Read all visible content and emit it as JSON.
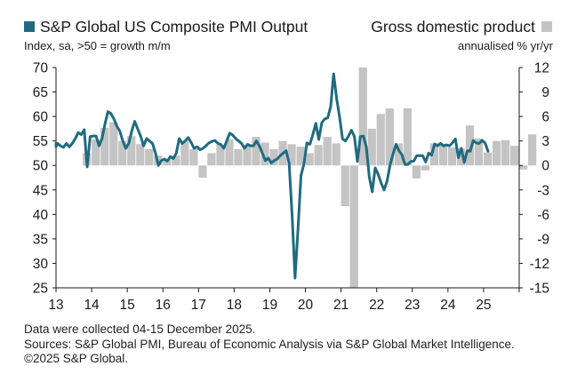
{
  "chart_data": {
    "type": "bar+line",
    "legend_left": {
      "label": "S&P Global US Composite PMI Output",
      "color": "#1f6b80"
    },
    "legend_right": {
      "label": "Gross domestic product",
      "color": "#c4c4c4"
    },
    "left_axis": {
      "subtitle": "Index, sa, >50 = growth m/m",
      "ylim": [
        25,
        70
      ],
      "ticks": [
        25,
        30,
        35,
        40,
        45,
        50,
        55,
        60,
        65,
        70
      ]
    },
    "right_axis": {
      "subtitle": "annualised % yr/yr",
      "ylim": [
        -15,
        12
      ],
      "ticks": [
        -15,
        -12,
        -9,
        -6,
        -3,
        0,
        3,
        6,
        9,
        12
      ]
    },
    "x_axis": {
      "range": [
        2013.0,
        2026.0
      ],
      "tick_labels": [
        "13",
        "14",
        "15",
        "16",
        "17",
        "18",
        "19",
        "20",
        "21",
        "22",
        "23",
        "24",
        "25"
      ]
    },
    "gdp_quarterly": {
      "start": "2013-Q4",
      "values": [
        1.5,
        3.2,
        4.6,
        5.3,
        3.0,
        3.6,
        2.6,
        2.0,
        1.2,
        0.8,
        1.2,
        3.0,
        2.0,
        -1.5,
        1.5,
        2.5,
        3.2,
        2.0,
        2.5,
        3.5,
        2.8,
        2.0,
        3.0,
        2.6,
        2.3,
        1.5,
        2.5,
        3.5,
        2.7,
        -5.0,
        -32.0,
        33.0,
        4.5,
        6.3,
        7.0,
        2.7,
        7.0,
        -1.6,
        -0.6,
        2.7,
        2.6,
        2.2,
        2.1,
        4.9,
        3.3,
        1.6,
        3.0,
        3.1,
        2.4,
        -0.5,
        3.8
      ],
      "note": "2020 Q2 and Q3 exceed the axis range and are clipped at the chart edges"
    },
    "pmi_monthly": {
      "start": "2012-10",
      "values": [
        54.0,
        54.5,
        53.8,
        54.5,
        54.0,
        53.7,
        54.5,
        53.8,
        54.5,
        55.5,
        56.7,
        56.3,
        57.3,
        49.7,
        55.9,
        56.0,
        56.0,
        54.0,
        55.5,
        58.5,
        61.0,
        60.6,
        59.5,
        58.0,
        57.0,
        55.0,
        53.5,
        54.5,
        57.0,
        59.0,
        57.5,
        56.0,
        54.0,
        55.5,
        55.0,
        54.5,
        52.5,
        50.0,
        51.0,
        51.3,
        50.9,
        51.8,
        51.4,
        52.5,
        55.5,
        54.5,
        55.0,
        55.7,
        54.7,
        53.5,
        53.8,
        53.2,
        53.5,
        54.0,
        54.6,
        54.9,
        55.1,
        54.5,
        54.3,
        53.5,
        55.0,
        56.6,
        56.2,
        55.5,
        55.0,
        54.5,
        53.5,
        54.3,
        54.0,
        54.0,
        55.0,
        54.0,
        52.5,
        51.0,
        51.5,
        50.5,
        51.0,
        51.3,
        52.0,
        52.5,
        53.0,
        50.5,
        40.0,
        27.0,
        37.0,
        47.9,
        50.3,
        54.6,
        54.3,
        56.3,
        58.6,
        55.3,
        58.7,
        59.5,
        59.7,
        62.0,
        68.7,
        63.7,
        59.9,
        55.4,
        55.0,
        56.0,
        57.2,
        55.9,
        50.8,
        55.9,
        56.0,
        53.8,
        47.7,
        44.6,
        49.5,
        48.2,
        46.4,
        45.0,
        46.8,
        50.1,
        52.3,
        54.3,
        53.0,
        52.2,
        50.2,
        50.2,
        50.8,
        50.9,
        52.0,
        52.0,
        52.0,
        50.7,
        52.5,
        52.1,
        54.4,
        54.0,
        54.5,
        54.0,
        54.2,
        54.0,
        54.6,
        55.4,
        51.6,
        53.5,
        50.6,
        53.0,
        52.9,
        55.1,
        54.6,
        54.5,
        55.1,
        54.6,
        52.9
      ]
    }
  },
  "footer": {
    "line1": "Data were collected 04-15 December 2025.",
    "line2": "Sources: S&P Global PMI, Bureau of Economic Analysis via S&P Global Market Intelligence.",
    "line3": "©2025 S&P Global."
  }
}
